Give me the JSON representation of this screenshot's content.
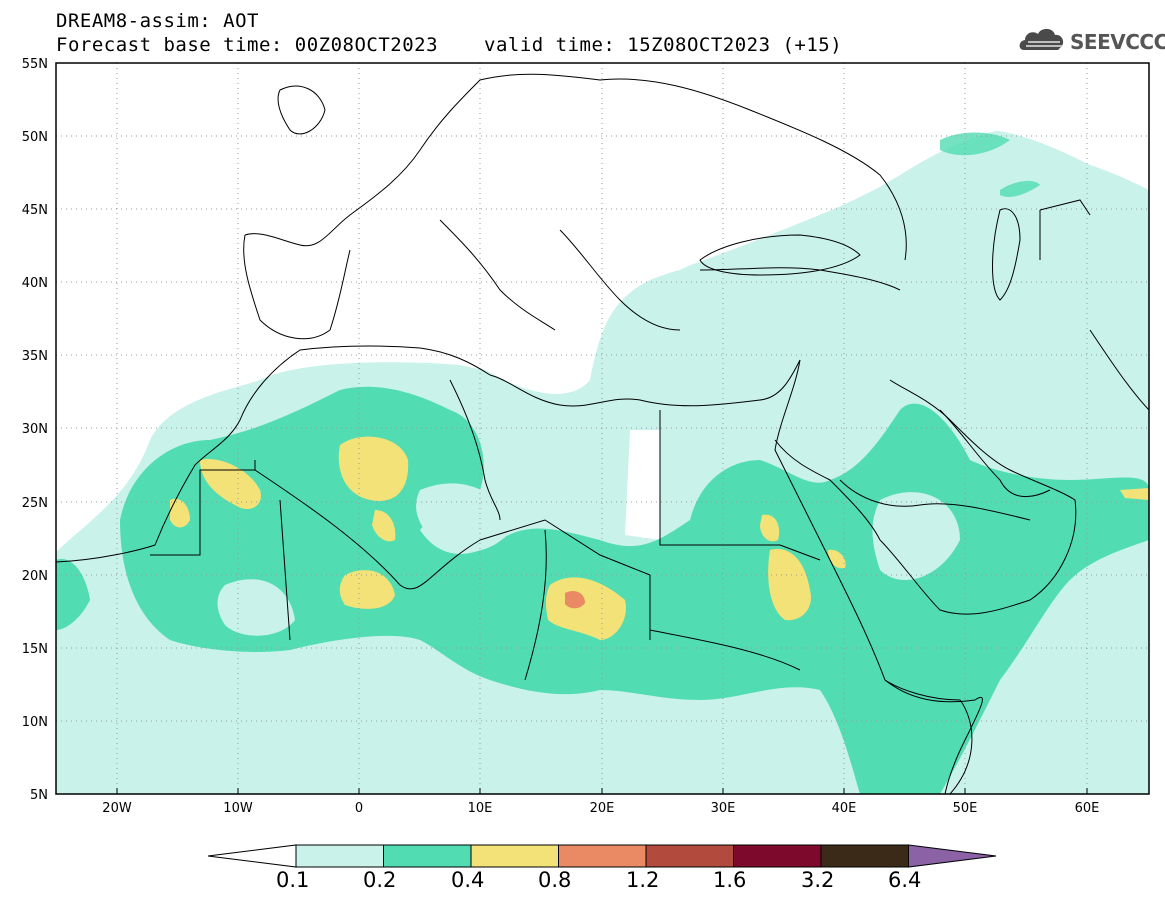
{
  "header": {
    "model_line": "DREAM8-assim: AOT",
    "base_time_line": "Forecast base time: 00Z08OCT2023",
    "valid_time_line": "valid time: 15Z08OCT2023 (+15)"
  },
  "logo": {
    "text": "SEEVCCC",
    "icon": "cloud-logo-icon"
  },
  "map": {
    "lat_labels": [
      "55N",
      "50N",
      "45N",
      "40N",
      "35N",
      "30N",
      "25N",
      "20N",
      "15N",
      "10N",
      "5N"
    ],
    "lon_labels": [
      "20W",
      "10W",
      "0",
      "10E",
      "20E",
      "30E",
      "40E",
      "50E",
      "60E"
    ],
    "lat_range": [
      5,
      55
    ],
    "lon_range": [
      -25,
      65
    ],
    "grid": "dotted"
  },
  "colorbar": {
    "labels": [
      "0.1",
      "0.2",
      "0.4",
      "0.8",
      "1.2",
      "1.6",
      "3.2",
      "6.4"
    ],
    "colors": [
      "#ffffff",
      "#c8f2ea",
      "#52dcb2",
      "#f3e277",
      "#e98a65",
      "#b24b3d",
      "#7d0a2c",
      "#3b2a17",
      "#8b62a6"
    ]
  }
}
